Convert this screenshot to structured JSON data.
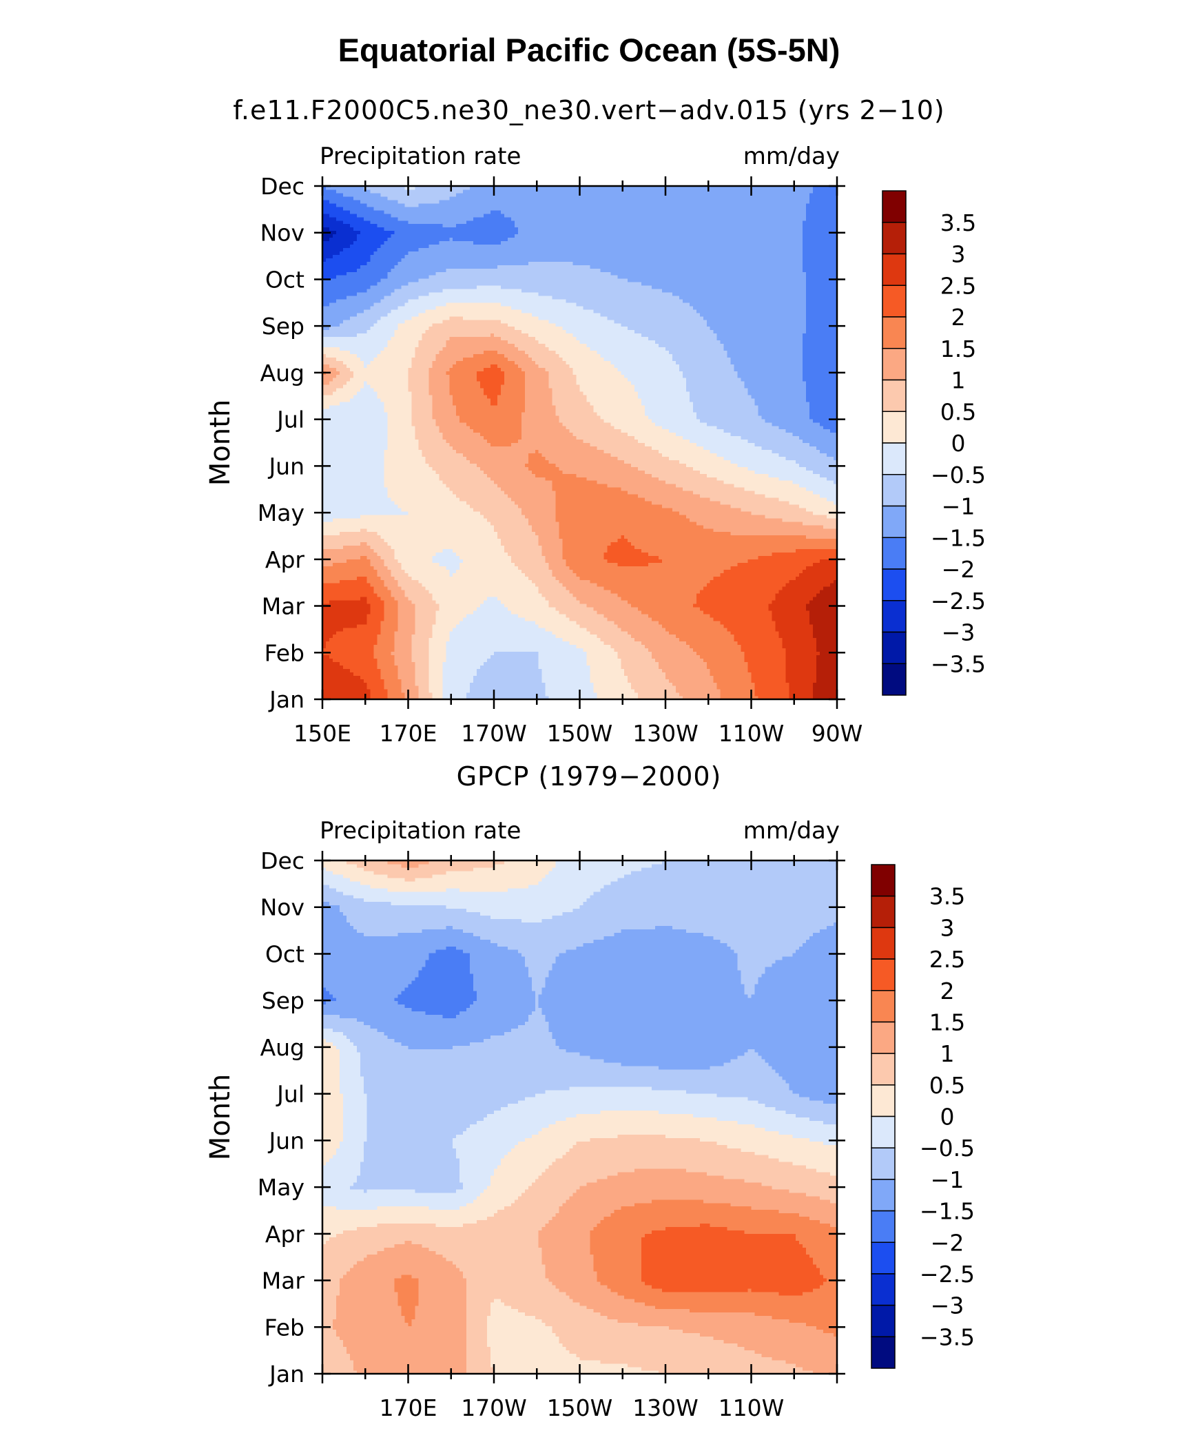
{
  "figure": {
    "title": "Equatorial Pacific Ocean (5S-5N)"
  },
  "colors": {
    "-3.75": "#000b80",
    "-3.25": "#0019a8",
    "-2.75": "#0a2fd1",
    "-2.25": "#1c4ef0",
    "-1.75": "#4a7df5",
    "-1.25": "#80a8f8",
    "-0.75": "#b2caf9",
    "-0.25": "#dbe8fb",
    "0.25": "#fde8d4",
    "0.75": "#fcc9ae",
    "1.25": "#fba883",
    "1.75": "#f98652",
    "2.25": "#f65a25",
    "2.75": "#de3810",
    "3.25": "#b51f08",
    "3.75": "#800000"
  },
  "chart_data": [
    {
      "type": "heatmap",
      "subtitle": "f.e11.F2000C5.ne30_ne30.vert−adv.015 (yrs 2−10)",
      "left_string": "Precipitation rate",
      "right_string": "mm/day",
      "ylabel": "Month",
      "x_ticks": [
        "150E",
        "170E",
        "170W",
        "150W",
        "130W",
        "110W",
        "90W"
      ],
      "y_ticks": [
        "Jan",
        "Feb",
        "Mar",
        "Apr",
        "May",
        "Jun",
        "Jul",
        "Aug",
        "Sep",
        "Oct",
        "Nov",
        "Dec"
      ],
      "xlim_deg_east": [
        150,
        270
      ],
      "colorbar_labels": [
        "3.5",
        "3",
        "2.5",
        "2",
        "1.5",
        "1",
        "0.5",
        "0",
        "−0.5",
        "−1",
        "−1.5",
        "−2",
        "−2.5",
        "−3",
        "−3.5"
      ],
      "levels": [
        -3.5,
        -3,
        -2.5,
        -2,
        -1.5,
        -1,
        -0.5,
        0,
        0.5,
        1,
        1.5,
        2,
        2.5,
        3,
        3.5
      ],
      "x_deg_east": [
        150,
        160,
        170,
        180,
        190,
        200,
        210,
        220,
        230,
        240,
        250,
        260,
        270
      ],
      "values": [
        [
          3.0,
          2.7,
          1.4,
          -0.3,
          -0.9,
          -0.6,
          -0.2,
          0.3,
          0.8,
          1.3,
          1.9,
          2.6,
          3.5
        ],
        [
          2.5,
          2.2,
          1.1,
          -0.2,
          -0.5,
          -0.5,
          -0.1,
          0.6,
          1.2,
          1.6,
          2.1,
          2.6,
          3.3
        ],
        [
          2.6,
          2.7,
          1.2,
          0.2,
          -0.1,
          0.3,
          0.9,
          1.4,
          1.8,
          2.1,
          2.3,
          2.8,
          3.5
        ],
        [
          1.3,
          1.6,
          0.1,
          -0.1,
          0.3,
          0.8,
          1.9,
          2.1,
          2.0,
          1.9,
          2.0,
          2.3,
          2.6
        ],
        [
          -0.3,
          -0.1,
          0.0,
          0.3,
          0.6,
          1.2,
          1.9,
          1.9,
          1.6,
          1.3,
          1.0,
          0.7,
          0.2
        ],
        [
          -0.4,
          -0.2,
          0.3,
          0.7,
          1.2,
          1.6,
          1.4,
          1.1,
          0.7,
          0.3,
          -0.1,
          -0.4,
          -0.9
        ],
        [
          -0.5,
          -0.5,
          0.4,
          1.4,
          1.9,
          1.3,
          0.7,
          0.3,
          -0.2,
          -0.6,
          -0.9,
          -1.3,
          -1.8
        ],
        [
          1.6,
          0.1,
          0.5,
          1.6,
          2.3,
          1.2,
          0.4,
          0.0,
          -0.3,
          -0.8,
          -1.1,
          -1.4,
          -1.9
        ],
        [
          -1.2,
          -0.6,
          0.2,
          0.8,
          0.7,
          0.2,
          -0.2,
          -0.5,
          -0.7,
          -1.0,
          -1.2,
          -1.4,
          -1.8
        ],
        [
          -2.0,
          -1.8,
          -1.1,
          -0.8,
          -0.7,
          -0.8,
          -0.9,
          -1.0,
          -1.1,
          -1.2,
          -1.3,
          -1.4,
          -1.8
        ],
        [
          -3.3,
          -2.4,
          -1.8,
          -1.6,
          -1.8,
          -1.3,
          -1.2,
          -1.2,
          -1.2,
          -1.2,
          -1.3,
          -1.4,
          -1.9
        ],
        [
          -1.5,
          -0.9,
          -0.4,
          -0.8,
          -1.2,
          -1.3,
          -1.2,
          -1.2,
          -1.2,
          -1.2,
          -1.3,
          -1.4,
          -1.6
        ]
      ]
    },
    {
      "type": "heatmap",
      "subtitle": "GPCP (1979−2000)",
      "left_string": "Precipitation rate",
      "right_string": "mm/day",
      "ylabel": "Month",
      "x_ticks": [
        "170E",
        "170W",
        "150W",
        "130W",
        "110W"
      ],
      "y_ticks": [
        "Jan",
        "Feb",
        "Mar",
        "Apr",
        "May",
        "Jun",
        "Jul",
        "Aug",
        "Sep",
        "Oct",
        "Nov",
        "Dec"
      ],
      "xlim_deg_east": [
        150,
        270
      ],
      "colorbar_labels": [
        "3.5",
        "3",
        "2.5",
        "2",
        "1.5",
        "1",
        "0.5",
        "0",
        "−0.5",
        "−1",
        "−1.5",
        "−2",
        "−2.5",
        "−3",
        "−3.5"
      ],
      "levels": [
        -3.5,
        -3,
        -2.5,
        -2,
        -1.5,
        -1,
        -0.5,
        0,
        0.5,
        1,
        1.5,
        2,
        2.5,
        3,
        3.5
      ],
      "x_deg_east": [
        150,
        160,
        170,
        180,
        190,
        200,
        210,
        220,
        230,
        240,
        250,
        260,
        270
      ],
      "values": [
        [
          0.6,
          1.1,
          1.3,
          1.3,
          0.5,
          0.3,
          0.4,
          0.4,
          0.5,
          0.6,
          0.8,
          0.9,
          1.1
        ],
        [
          0.9,
          1.3,
          1.5,
          1.4,
          0.3,
          0.4,
          0.7,
          0.9,
          1.0,
          1.1,
          1.2,
          1.4,
          1.6
        ],
        [
          0.8,
          1.3,
          1.6,
          1.2,
          0.6,
          0.9,
          1.3,
          1.8,
          2.3,
          2.3,
          2.2,
          2.3,
          1.9
        ],
        [
          0.4,
          0.7,
          0.9,
          0.7,
          0.8,
          1.0,
          1.4,
          1.9,
          2.1,
          2.2,
          2.0,
          2.0,
          1.6
        ],
        [
          -0.3,
          -0.6,
          -0.6,
          -0.7,
          0.1,
          0.6,
          1.0,
          1.2,
          1.3,
          1.2,
          1.1,
          0.9,
          0.7
        ],
        [
          0.4,
          -0.5,
          -0.7,
          -0.5,
          -0.2,
          0.1,
          0.5,
          0.6,
          0.6,
          0.5,
          0.3,
          0.1,
          -0.1
        ],
        [
          0.4,
          -0.5,
          -0.8,
          -0.9,
          -0.7,
          -0.5,
          -0.4,
          -0.3,
          -0.4,
          -0.5,
          -0.6,
          -1.0,
          -1.3
        ],
        [
          0.4,
          -0.7,
          -1.0,
          -1.0,
          -0.9,
          -0.9,
          -1.1,
          -1.4,
          -1.5,
          -1.4,
          -1.0,
          -1.3,
          -1.4
        ],
        [
          -1.6,
          -1.3,
          -1.6,
          -1.8,
          -1.3,
          -1.0,
          -1.2,
          -1.3,
          -1.3,
          -1.1,
          -1.0,
          -1.4,
          -1.4
        ],
        [
          -1.3,
          -1.2,
          -1.3,
          -1.7,
          -1.2,
          -0.9,
          -1.1,
          -1.3,
          -1.3,
          -1.2,
          -0.9,
          -1.0,
          -1.4
        ],
        [
          -1.2,
          -0.7,
          -0.6,
          -0.5,
          -0.3,
          -0.3,
          -0.5,
          -0.7,
          -0.8,
          -0.7,
          -0.7,
          -0.7,
          -0.8
        ],
        [
          0.2,
          0.8,
          1.3,
          0.8,
          0.6,
          0.3,
          -0.3,
          -0.4,
          -0.5,
          -0.6,
          -0.6,
          -0.7,
          -0.8
        ]
      ]
    }
  ]
}
